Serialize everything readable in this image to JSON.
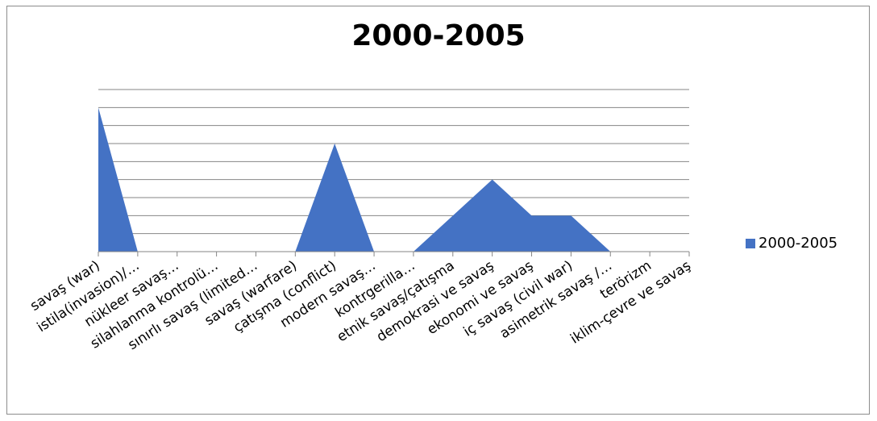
{
  "chart_data": {
    "type": "area",
    "title": "2000-2005",
    "categories": [
      "savaş (war)",
      "istila(invasion)/…",
      "nükleer savaş…",
      "silahlanma kontrolü…",
      "sınırlı savaş (limited…",
      "savaş (warfare)",
      "çatışma (conflict)",
      "modern savaş…",
      "kontrgerilla…",
      "etnik savaş/çatışma",
      "demokrasi ve savaş",
      "ekonomi ve savaş",
      "iç savaş (civil war)",
      "asimetrik savaş /…",
      "terörizm",
      "iklim-çevre ve savaş"
    ],
    "series": [
      {
        "name": "2000-2005",
        "values": [
          8,
          0,
          0,
          0,
          0,
          0,
          6,
          0,
          0,
          2,
          4,
          2,
          2,
          0,
          0,
          0
        ]
      }
    ],
    "ylim": [
      0,
      9
    ],
    "grid": true,
    "legend_position": "right",
    "color": "#4472c4"
  }
}
